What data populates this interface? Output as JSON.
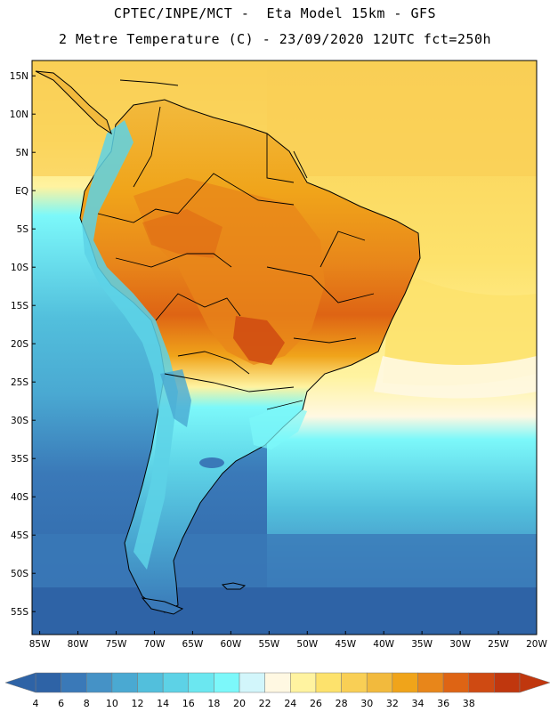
{
  "header": {
    "line1": "CPTEC/INPE/MCT -  Eta Model 15km - GFS",
    "line2": "2 Metre Temperature (C) - 23/09/2020 12UTC fct=250h"
  },
  "map": {
    "lat_labels": [
      "15N",
      "10N",
      "5N",
      "EQ",
      "5S",
      "10S",
      "15S",
      "20S",
      "25S",
      "30S",
      "35S",
      "40S",
      "45S",
      "50S",
      "55S"
    ],
    "lat_values": [
      15,
      10,
      5,
      0,
      -5,
      -10,
      -15,
      -20,
      -25,
      -30,
      -35,
      -40,
      -45,
      -50,
      -55
    ],
    "lon_labels": [
      "85W",
      "80W",
      "75W",
      "70W",
      "65W",
      "60W",
      "55W",
      "50W",
      "45W",
      "40W",
      "35W",
      "30W",
      "25W",
      "20W"
    ],
    "lon_values": [
      -85,
      -80,
      -75,
      -70,
      -65,
      -60,
      -55,
      -50,
      -45,
      -40,
      -35,
      -30,
      -25,
      -20
    ],
    "lat_range": [
      -58,
      17
    ],
    "lon_range": [
      -86,
      -20
    ]
  },
  "colorbar": {
    "labels": [
      "4",
      "6",
      "8",
      "10",
      "12",
      "14",
      "16",
      "18",
      "20",
      "22",
      "24",
      "26",
      "28",
      "30",
      "32",
      "34",
      "36",
      "38"
    ],
    "colors": [
      "#2e63a6",
      "#3a79b8",
      "#4592c6",
      "#4aa9d2",
      "#52bfdc",
      "#5dd2e6",
      "#6be7f0",
      "#7cf8fa",
      "#d2f6fb",
      "#fff8e2",
      "#fff3a0",
      "#fde26c",
      "#f9cf55",
      "#f2ba3d",
      "#f0a41a",
      "#e8861a",
      "#de6414",
      "#cf4a12",
      "#c0370e"
    ]
  },
  "legend_colors": {
    "ocean_cold": "#2e63a6",
    "ocean_mid": "#52bfdc",
    "ocean_warm": "#fde26c",
    "land_hot": "#e8861a",
    "andes": "#5dd2e6",
    "border": "#000000"
  }
}
